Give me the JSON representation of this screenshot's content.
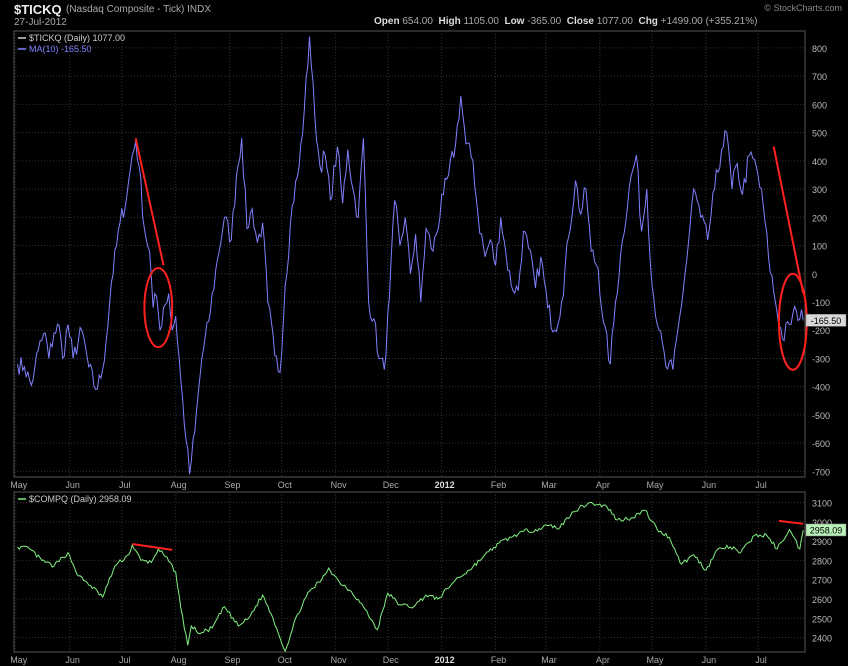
{
  "header": {
    "ticker": "$TICKQ",
    "name": "(Nasdaq Composite - Tick)",
    "exchange": "INDX",
    "date": "27-Jul-2012",
    "open_label": "Open",
    "open": "654.00",
    "high_label": "High",
    "high": "1105.00",
    "low_label": "Low",
    "low": "-365.00",
    "close_label": "Close",
    "close": "1077.00",
    "chg_label": "Chg",
    "chg": "+1499.00 (+355.21%)",
    "logo": "© StockCharts.com"
  },
  "colors": {
    "tick_line": "#8080ff",
    "compq_line": "#80f080",
    "annotation": "#ff2020",
    "grid": "#333333",
    "price_box": "#d8d8d8"
  },
  "chart_data": [
    {
      "type": "line",
      "legend": [
        "$TICKQ (Daily) 1077.00",
        "MA(10) -165.50"
      ],
      "price_label": "-165.50",
      "x_tick_labels": [
        "May",
        "Jun",
        "Jul",
        "Aug",
        "Sep",
        "Oct",
        "Nov",
        "Dec",
        "2012",
        "Feb",
        "Mar",
        "Apr",
        "May",
        "Jun",
        "Jul"
      ],
      "y_tick_labels": [
        "800",
        "700",
        "600",
        "500",
        "400",
        "300",
        "200",
        "100",
        "0",
        "-100",
        "-200",
        "-300",
        "-400",
        "-500",
        "-600",
        "-700"
      ],
      "ylim": [
        -720,
        860
      ],
      "series": [
        {
          "name": "MA(10)",
          "t_start": "2011-05-02",
          "t_end": "2012-07-27",
          "anchors": [
            [
              "2011-05-02",
              -320
            ],
            [
              "2011-05-06",
              -330
            ],
            [
              "2011-05-10",
              -395
            ],
            [
              "2011-05-12",
              -330
            ],
            [
              "2011-05-14",
              -270
            ],
            [
              "2011-05-18",
              -210
            ],
            [
              "2011-05-20",
              -300
            ],
            [
              "2011-05-23",
              -210
            ],
            [
              "2011-05-26",
              -185
            ],
            [
              "2011-05-28",
              -300
            ],
            [
              "2011-05-31",
              -180
            ],
            [
              "2011-06-03",
              -300
            ],
            [
              "2011-06-08",
              -200
            ],
            [
              "2011-06-12",
              -330
            ],
            [
              "2011-06-16",
              -410
            ],
            [
              "2011-06-19",
              -370
            ],
            [
              "2011-06-22",
              -240
            ],
            [
              "2011-06-25",
              -30
            ],
            [
              "2011-06-30",
              180
            ],
            [
              "2011-07-04",
              280
            ],
            [
              "2011-07-07",
              420
            ],
            [
              "2011-07-09",
              470
            ],
            [
              "2011-07-11",
              380
            ],
            [
              "2011-07-14",
              160
            ],
            [
              "2011-07-17",
              80
            ],
            [
              "2011-07-19",
              -120
            ],
            [
              "2011-07-21",
              -80
            ],
            [
              "2011-07-23",
              -200
            ],
            [
              "2011-07-25",
              -120
            ],
            [
              "2011-07-28",
              -70
            ],
            [
              "2011-07-30",
              -200
            ],
            [
              "2011-08-01",
              -150
            ],
            [
              "2011-08-04",
              -380
            ],
            [
              "2011-08-07",
              -590
            ],
            [
              "2011-08-09",
              -710
            ],
            [
              "2011-08-12",
              -560
            ],
            [
              "2011-08-16",
              -300
            ],
            [
              "2011-08-20",
              -170
            ],
            [
              "2011-08-25",
              50
            ],
            [
              "2011-08-29",
              200
            ],
            [
              "2011-09-02",
              120
            ],
            [
              "2011-09-05",
              350
            ],
            [
              "2011-09-08",
              480
            ],
            [
              "2011-09-11",
              160
            ],
            [
              "2011-09-14",
              230
            ],
            [
              "2011-09-17",
              110
            ],
            [
              "2011-09-20",
              180
            ],
            [
              "2011-09-23",
              -100
            ],
            [
              "2011-09-27",
              -290
            ],
            [
              "2011-09-30",
              -350
            ],
            [
              "2011-10-03",
              -40
            ],
            [
              "2011-10-07",
              240
            ],
            [
              "2011-10-11",
              380
            ],
            [
              "2011-10-14",
              580
            ],
            [
              "2011-10-17",
              840
            ],
            [
              "2011-10-20",
              560
            ],
            [
              "2011-10-23",
              380
            ],
            [
              "2011-10-26",
              420
            ],
            [
              "2011-10-29",
              260
            ],
            [
              "2011-11-02",
              450
            ],
            [
              "2011-11-05",
              250
            ],
            [
              "2011-11-08",
              440
            ],
            [
              "2011-11-11",
              300
            ],
            [
              "2011-11-14",
              200
            ],
            [
              "2011-11-17",
              480
            ],
            [
              "2011-11-20",
              -100
            ],
            [
              "2011-11-23",
              -160
            ],
            [
              "2011-11-26",
              -300
            ],
            [
              "2011-11-29",
              -340
            ],
            [
              "2011-12-02",
              -80
            ],
            [
              "2011-12-05",
              260
            ],
            [
              "2011-12-08",
              100
            ],
            [
              "2011-12-11",
              200
            ],
            [
              "2011-12-14",
              0
            ],
            [
              "2011-12-17",
              140
            ],
            [
              "2011-12-20",
              -100
            ],
            [
              "2011-12-23",
              160
            ],
            [
              "2011-12-27",
              80
            ],
            [
              "2012-01-02",
              280
            ],
            [
              "2012-01-05",
              350
            ],
            [
              "2012-01-09",
              460
            ],
            [
              "2012-01-12",
              630
            ],
            [
              "2012-01-15",
              460
            ],
            [
              "2012-01-19",
              400
            ],
            [
              "2012-01-22",
              200
            ],
            [
              "2012-01-26",
              60
            ],
            [
              "2012-01-29",
              120
            ],
            [
              "2012-02-01",
              30
            ],
            [
              "2012-02-04",
              200
            ],
            [
              "2012-02-07",
              70
            ],
            [
              "2012-02-10",
              -40
            ],
            [
              "2012-02-14",
              -60
            ],
            [
              "2012-02-17",
              150
            ],
            [
              "2012-02-20",
              90
            ],
            [
              "2012-02-24",
              -50
            ],
            [
              "2012-02-27",
              60
            ],
            [
              "2012-03-02",
              -120
            ],
            [
              "2012-03-06",
              -200
            ],
            [
              "2012-03-10",
              -100
            ],
            [
              "2012-03-14",
              130
            ],
            [
              "2012-03-18",
              330
            ],
            [
              "2012-03-21",
              210
            ],
            [
              "2012-03-24",
              300
            ],
            [
              "2012-03-27",
              80
            ],
            [
              "2012-03-31",
              20
            ],
            [
              "2012-04-03",
              -170
            ],
            [
              "2012-04-07",
              -320
            ],
            [
              "2012-04-10",
              -100
            ],
            [
              "2012-04-14",
              120
            ],
            [
              "2012-04-18",
              310
            ],
            [
              "2012-04-22",
              420
            ],
            [
              "2012-04-25",
              150
            ],
            [
              "2012-04-28",
              300
            ],
            [
              "2012-05-01",
              -40
            ],
            [
              "2012-05-05",
              -200
            ],
            [
              "2012-05-09",
              -330
            ],
            [
              "2012-05-13",
              -340
            ],
            [
              "2012-05-17",
              -150
            ],
            [
              "2012-05-21",
              50
            ],
            [
              "2012-05-25",
              300
            ],
            [
              "2012-05-29",
              200
            ],
            [
              "2012-06-02",
              120
            ],
            [
              "2012-06-06",
              300
            ],
            [
              "2012-06-10",
              440
            ],
            [
              "2012-06-13",
              500
            ],
            [
              "2012-06-16",
              300
            ],
            [
              "2012-06-19",
              390
            ],
            [
              "2012-06-22",
              280
            ],
            [
              "2012-06-26",
              420
            ],
            [
              "2012-06-30",
              380
            ],
            [
              "2012-07-04",
              240
            ],
            [
              "2012-07-07",
              60
            ],
            [
              "2012-07-11",
              -100
            ],
            [
              "2012-07-15",
              -230
            ],
            [
              "2012-07-19",
              -180
            ],
            [
              "2012-07-23",
              -130
            ],
            [
              "2012-07-27",
              -165
            ]
          ]
        }
      ],
      "annotations": {
        "trend_line": [
          [
            "2011-07-09",
            480
          ],
          [
            "2011-07-25",
            30
          ]
        ],
        "trend_line_2": [
          [
            "2012-07-10",
            450
          ],
          [
            "2012-07-27",
            -70
          ]
        ],
        "circle_1": {
          "center": [
            "2011-07-22",
            -120
          ],
          "radius_days": 8,
          "radius_value": 140
        },
        "circle_2": {
          "center": [
            "2012-07-21",
            -170
          ],
          "radius_days": 8,
          "radius_value": 170
        }
      }
    },
    {
      "type": "line",
      "legend": [
        "$COMPQ (Daily) 2958.09"
      ],
      "price_label": "2958.09",
      "x_tick_labels": [
        "May",
        "Jun",
        "Jul",
        "Aug",
        "Sep",
        "Oct",
        "Nov",
        "Dec",
        "2012",
        "Feb",
        "Mar",
        "Apr",
        "May",
        "Jun",
        "Jul"
      ],
      "y_tick_labels": [
        "3100",
        "3000",
        "2900",
        "2800",
        "2700",
        "2600",
        "2500",
        "2400"
      ],
      "ylim": [
        2325,
        3155
      ],
      "series": [
        {
          "name": "$COMPQ",
          "anchors": [
            [
              "2011-05-02",
              2870
            ],
            [
              "2011-05-09",
              2860
            ],
            [
              "2011-05-16",
              2800
            ],
            [
              "2011-05-23",
              2770
            ],
            [
              "2011-05-31",
              2840
            ],
            [
              "2011-06-06",
              2720
            ],
            [
              "2011-06-13",
              2670
            ],
            [
              "2011-06-20",
              2610
            ],
            [
              "2011-06-27",
              2770
            ],
            [
              "2011-07-05",
              2830
            ],
            [
              "2011-07-07",
              2880
            ],
            [
              "2011-07-12",
              2800
            ],
            [
              "2011-07-18",
              2790
            ],
            [
              "2011-07-22",
              2860
            ],
            [
              "2011-07-26",
              2820
            ],
            [
              "2011-08-01",
              2740
            ],
            [
              "2011-08-04",
              2550
            ],
            [
              "2011-08-08",
              2360
            ],
            [
              "2011-08-10",
              2460
            ],
            [
              "2011-08-15",
              2420
            ],
            [
              "2011-08-22",
              2450
            ],
            [
              "2011-08-29",
              2560
            ],
            [
              "2011-09-06",
              2460
            ],
            [
              "2011-09-12",
              2500
            ],
            [
              "2011-09-20",
              2620
            ],
            [
              "2011-09-26",
              2500
            ],
            [
              "2011-10-03",
              2330
            ],
            [
              "2011-10-10",
              2520
            ],
            [
              "2011-10-17",
              2640
            ],
            [
              "2011-10-24",
              2700
            ],
            [
              "2011-10-28",
              2760
            ],
            [
              "2011-11-03",
              2690
            ],
            [
              "2011-11-10",
              2640
            ],
            [
              "2011-11-17",
              2560
            ],
            [
              "2011-11-25",
              2440
            ],
            [
              "2011-12-01",
              2630
            ],
            [
              "2011-12-08",
              2570
            ],
            [
              "2011-12-16",
              2560
            ],
            [
              "2011-12-23",
              2620
            ],
            [
              "2011-12-30",
              2600
            ],
            [
              "2012-01-09",
              2700
            ],
            [
              "2012-01-17",
              2750
            ],
            [
              "2012-01-25",
              2820
            ],
            [
              "2012-02-03",
              2890
            ],
            [
              "2012-02-10",
              2920
            ],
            [
              "2012-02-17",
              2950
            ],
            [
              "2012-02-24",
              2960
            ],
            [
              "2012-03-02",
              2980
            ],
            [
              "2012-03-09",
              2970
            ],
            [
              "2012-03-16",
              3050
            ],
            [
              "2012-03-26",
              3100
            ],
            [
              "2012-03-30",
              3090
            ],
            [
              "2012-04-05",
              3080
            ],
            [
              "2012-04-11",
              3010
            ],
            [
              "2012-04-19",
              3020
            ],
            [
              "2012-04-27",
              3060
            ],
            [
              "2012-05-04",
              2960
            ],
            [
              "2012-05-11",
              2920
            ],
            [
              "2012-05-18",
              2780
            ],
            [
              "2012-05-25",
              2830
            ],
            [
              "2012-06-01",
              2750
            ],
            [
              "2012-06-08",
              2860
            ],
            [
              "2012-06-15",
              2870
            ],
            [
              "2012-06-21",
              2840
            ],
            [
              "2012-06-29",
              2930
            ],
            [
              "2012-07-06",
              2930
            ],
            [
              "2012-07-12",
              2860
            ],
            [
              "2012-07-19",
              2960
            ],
            [
              "2012-07-25",
              2860
            ],
            [
              "2012-07-27",
              2958
            ]
          ]
        }
      ],
      "annotations": {
        "trend_line": [
          [
            "2011-07-07",
            2885
          ],
          [
            "2011-07-30",
            2855
          ]
        ],
        "trend_line_2": [
          [
            "2012-07-13",
            3005
          ],
          [
            "2012-07-27",
            2990
          ]
        ]
      }
    }
  ]
}
